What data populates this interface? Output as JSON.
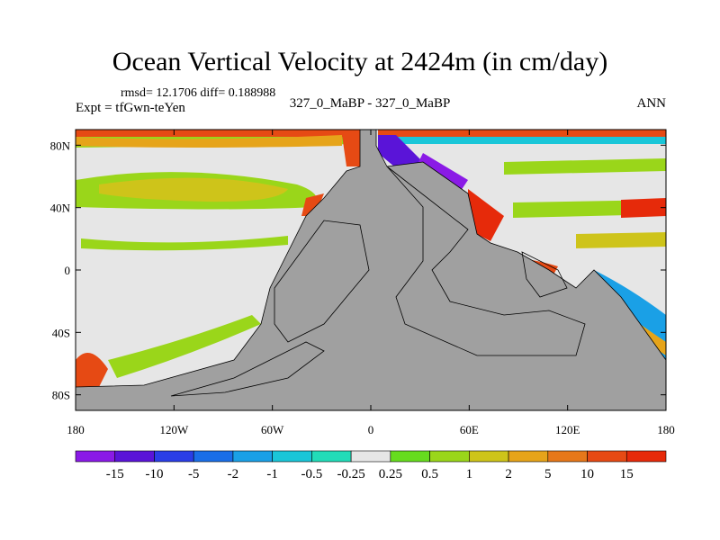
{
  "chart_data": {
    "type": "heatmap",
    "title": "Ocean Vertical Velocity at 2424m (in cm/day)",
    "stats": "rmsd= 12.1706  diff= 0.188988",
    "experiment": "Expt = tfGwn-teYen",
    "comparison": "327_0_MaBP - 327_0_MaBP",
    "season": "ANN",
    "x_ticks": [
      "180",
      "120W",
      "60W",
      "0",
      "60E",
      "120E",
      "180"
    ],
    "x_tick_values": [
      -180,
      -120,
      -60,
      0,
      60,
      120,
      180
    ],
    "y_ticks": [
      "80N",
      "40N",
      "0",
      "40S",
      "80S"
    ],
    "y_tick_values": [
      80,
      40,
      0,
      -40,
      -80
    ],
    "xlim": [
      -180,
      180
    ],
    "ylim": [
      -90,
      90
    ],
    "colorbar": {
      "labels": [
        "-15",
        "-10",
        "-5",
        "-2",
        "-1",
        "-0.5",
        "-0.25",
        "0.25",
        "0.5",
        "1",
        "2",
        "5",
        "10",
        "15"
      ],
      "colors": [
        "#8a1ae6",
        "#5a14d8",
        "#2a3ee6",
        "#1a6ee8",
        "#1aa0e6",
        "#1ac6d8",
        "#22dcb8",
        "#e6e6e6",
        "#66dc1e",
        "#9ad61a",
        "#cec41a",
        "#e6a41a",
        "#e6781a",
        "#e64a14",
        "#e62a0a"
      ]
    },
    "land_color": "#a0a0a0",
    "ocean_neutral_color": "#e6e6e6"
  }
}
